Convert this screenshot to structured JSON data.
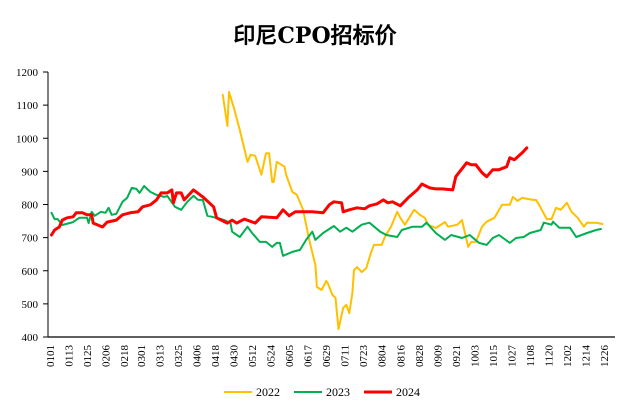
{
  "chart_data": {
    "type": "line",
    "title": "印尼CPO招标价",
    "xlabel": "",
    "ylabel": "",
    "ylim": [
      400,
      1200
    ],
    "yticks": [
      "400",
      "500",
      "600",
      "700",
      "800",
      "900",
      "1000",
      "1100",
      "1200"
    ],
    "xticks": [
      "0101",
      "0113",
      "0125",
      "0206",
      "0218",
      "0301",
      "0313",
      "0325",
      "0406",
      "0418",
      "0430",
      "0512",
      "0524",
      "0605",
      "0617",
      "0629",
      "0711",
      "0723",
      "0804",
      "0816",
      "0828",
      "0909",
      "0921",
      "1003",
      "1015",
      "1027",
      "1108",
      "1120",
      "1202",
      "1214",
      "1226"
    ],
    "grid": false,
    "legend": "bottom",
    "series": [
      {
        "name": "2022",
        "color": "#FFC000",
        "points": [
          [
            "0423",
            1131
          ],
          [
            "0426",
            1037
          ],
          [
            "0427",
            1140
          ],
          [
            "0430",
            1095
          ],
          [
            "0504",
            1025
          ],
          [
            "0509",
            929
          ],
          [
            "0511",
            950
          ],
          [
            "0514",
            947
          ],
          [
            "0518",
            890
          ],
          [
            "0521",
            955
          ],
          [
            "0523",
            955
          ],
          [
            "0525",
            868
          ],
          [
            "0526",
            868
          ],
          [
            "0528",
            929
          ],
          [
            "0602",
            914
          ],
          [
            "0603",
            890
          ],
          [
            "0607",
            838
          ],
          [
            "0610",
            829
          ],
          [
            "0614",
            784
          ],
          [
            "0618",
            693
          ],
          [
            "0622",
            617
          ],
          [
            "0623",
            551
          ],
          [
            "0626",
            542
          ],
          [
            "0629",
            569
          ],
          [
            "0630",
            563
          ],
          [
            "0703",
            527
          ],
          [
            "0705",
            518
          ],
          [
            "0707",
            424
          ],
          [
            "0710",
            488
          ],
          [
            "0712",
            497
          ],
          [
            "0714",
            472
          ],
          [
            "0716",
            533
          ],
          [
            "0717",
            602
          ],
          [
            "0719",
            611
          ],
          [
            "0722",
            596
          ],
          [
            "0725",
            608
          ],
          [
            "0728",
            654
          ],
          [
            "0730",
            678
          ],
          [
            "0804",
            678
          ],
          [
            "0806",
            702
          ],
          [
            "0810",
            733
          ],
          [
            "0814",
            778
          ],
          [
            "0816",
            760
          ],
          [
            "0819",
            739
          ],
          [
            "0825",
            784
          ],
          [
            "0829",
            768
          ],
          [
            "0901",
            760
          ],
          [
            "0903",
            739
          ],
          [
            "0908",
            729
          ],
          [
            "0914",
            747
          ],
          [
            "0916",
            733
          ],
          [
            "0922",
            739
          ],
          [
            "0925",
            753
          ],
          [
            "0929",
            672
          ],
          [
            "1001",
            687
          ],
          [
            "1004",
            687
          ],
          [
            "1008",
            733
          ],
          [
            "1011",
            748
          ],
          [
            "1016",
            760
          ],
          [
            "1021",
            799
          ],
          [
            "1026",
            799
          ],
          [
            "1028",
            823
          ],
          [
            "1031",
            811
          ],
          [
            "1103",
            820
          ],
          [
            "1110",
            814
          ],
          [
            "1112",
            814
          ],
          [
            "1114",
            799
          ],
          [
            "1119",
            756
          ],
          [
            "1122",
            756
          ],
          [
            "1125",
            790
          ],
          [
            "1128",
            784
          ],
          [
            "1202",
            805
          ],
          [
            "1205",
            778
          ],
          [
            "1209",
            760
          ],
          [
            "1213",
            733
          ],
          [
            "1215",
            745
          ],
          [
            "1221",
            745
          ],
          [
            "1225",
            741
          ]
        ]
      },
      {
        "name": "2023",
        "color": "#00B050",
        "points": [
          [
            "0102",
            775
          ],
          [
            "0104",
            756
          ],
          [
            "0106",
            756
          ],
          [
            "0109",
            738
          ],
          [
            "0116",
            747
          ],
          [
            "0120",
            760
          ],
          [
            "0125",
            760
          ],
          [
            "0126",
            744
          ],
          [
            "0128",
            778
          ],
          [
            "0130",
            766
          ],
          [
            "0203",
            778
          ],
          [
            "0206",
            775
          ],
          [
            "0208",
            790
          ],
          [
            "0210",
            769
          ],
          [
            "0213",
            772
          ],
          [
            "0217",
            808
          ],
          [
            "0220",
            820
          ],
          [
            "0223",
            850
          ],
          [
            "0226",
            847
          ],
          [
            "0228",
            835
          ],
          [
            "0303",
            856
          ],
          [
            "0307",
            838
          ],
          [
            "0311",
            829
          ],
          [
            "0316",
            823
          ],
          [
            "0318",
            826
          ],
          [
            "0323",
            793
          ],
          [
            "0327",
            784
          ],
          [
            "0331",
            808
          ],
          [
            "0404",
            826
          ],
          [
            "0407",
            814
          ],
          [
            "0410",
            814
          ],
          [
            "0413",
            766
          ],
          [
            "0419",
            760
          ],
          [
            "0424",
            753
          ],
          [
            "0428",
            744
          ],
          [
            "0429",
            718
          ],
          [
            "0504",
            702
          ],
          [
            "0509",
            733
          ],
          [
            "0512",
            714
          ],
          [
            "0517",
            687
          ],
          [
            "0521",
            687
          ],
          [
            "0525",
            672
          ],
          [
            "0528",
            684
          ],
          [
            "0530",
            684
          ],
          [
            "0601",
            645
          ],
          [
            "0607",
            657
          ],
          [
            "0612",
            663
          ],
          [
            "0616",
            693
          ],
          [
            "0620",
            718
          ],
          [
            "0622",
            693
          ],
          [
            "0627",
            714
          ],
          [
            "0704",
            735
          ],
          [
            "0708",
            718
          ],
          [
            "0712",
            730
          ],
          [
            "0716",
            718
          ],
          [
            "0722",
            739
          ],
          [
            "0727",
            745
          ],
          [
            "0803",
            718
          ],
          [
            "0807",
            708
          ],
          [
            "0814",
            702
          ],
          [
            "0817",
            723
          ],
          [
            "0824",
            733
          ],
          [
            "0830",
            733
          ],
          [
            "0902",
            745
          ],
          [
            "0908",
            714
          ],
          [
            "0914",
            693
          ],
          [
            "0918",
            708
          ],
          [
            "0925",
            699
          ],
          [
            "0930",
            708
          ],
          [
            "1006",
            684
          ],
          [
            "1011",
            678
          ],
          [
            "1015",
            699
          ],
          [
            "1019",
            708
          ],
          [
            "1026",
            684
          ],
          [
            "1030",
            699
          ],
          [
            "1104",
            702
          ],
          [
            "1108",
            714
          ],
          [
            "1115",
            723
          ],
          [
            "1117",
            745
          ],
          [
            "1122",
            739
          ],
          [
            "1123",
            748
          ],
          [
            "1127",
            730
          ],
          [
            "1204",
            730
          ],
          [
            "1208",
            702
          ],
          [
            "1215",
            714
          ],
          [
            "1221",
            723
          ],
          [
            "1224",
            726
          ]
        ]
      },
      {
        "name": "2024",
        "color": "#FF0000",
        "points": [
          [
            "0102",
            708
          ],
          [
            "0104",
            723
          ],
          [
            "0107",
            732
          ],
          [
            "0109",
            753
          ],
          [
            "0112",
            760
          ],
          [
            "0116",
            763
          ],
          [
            "0118",
            775
          ],
          [
            "0122",
            775
          ],
          [
            "0125",
            769
          ],
          [
            "0128",
            769
          ],
          [
            "0129",
            744
          ],
          [
            "0201",
            738
          ],
          [
            "0204",
            732
          ],
          [
            "0207",
            747
          ],
          [
            "0213",
            753
          ],
          [
            "0217",
            769
          ],
          [
            "0222",
            775
          ],
          [
            "0227",
            778
          ],
          [
            "0302",
            793
          ],
          [
            "0307",
            799
          ],
          [
            "0311",
            814
          ],
          [
            "0314",
            835
          ],
          [
            "0318",
            835
          ],
          [
            "0321",
            844
          ],
          [
            "0322",
            805
          ],
          [
            "0324",
            835
          ],
          [
            "0327",
            835
          ],
          [
            "0329",
            814
          ],
          [
            "0404",
            844
          ],
          [
            "0410",
            823
          ],
          [
            "0417",
            793
          ],
          [
            "0419",
            760
          ],
          [
            "0422",
            753
          ],
          [
            "0426",
            744
          ],
          [
            "0429",
            753
          ],
          [
            "0502",
            744
          ],
          [
            "0507",
            756
          ],
          [
            "0514",
            744
          ],
          [
            "0518",
            763
          ],
          [
            "0528",
            760
          ],
          [
            "0601",
            784
          ],
          [
            "0605",
            766
          ],
          [
            "0609",
            778
          ],
          [
            "0613",
            778
          ],
          [
            "0620",
            778
          ],
          [
            "0627",
            775
          ],
          [
            "0701",
            799
          ],
          [
            "0704",
            808
          ],
          [
            "0709",
            805
          ],
          [
            "0710",
            778
          ],
          [
            "0714",
            784
          ],
          [
            "0719",
            790
          ],
          [
            "0724",
            787
          ],
          [
            "0727",
            796
          ],
          [
            "0801",
            802
          ],
          [
            "0805",
            814
          ],
          [
            "0808",
            805
          ],
          [
            "0811",
            808
          ],
          [
            "0816",
            796
          ],
          [
            "0821",
            820
          ],
          [
            "0827",
            844
          ],
          [
            "0830",
            862
          ],
          [
            "0904",
            850
          ],
          [
            "0908",
            847
          ],
          [
            "0912",
            847
          ],
          [
            "0919",
            844
          ],
          [
            "0921",
            884
          ],
          [
            "0923",
            896
          ],
          [
            "0928",
            926
          ],
          [
            "1001",
            920
          ],
          [
            "1004",
            920
          ],
          [
            "1008",
            896
          ],
          [
            "1011",
            884
          ],
          [
            "1015",
            905
          ],
          [
            "1019",
            905
          ],
          [
            "1024",
            914
          ],
          [
            "1026",
            941
          ],
          [
            "1029",
            935
          ],
          [
            "1103",
            956
          ],
          [
            "1106",
            971
          ]
        ]
      }
    ]
  }
}
